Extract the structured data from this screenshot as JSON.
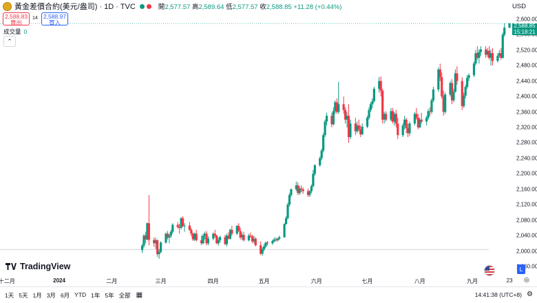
{
  "header": {
    "symbol": "黃金差價合約(美元/盎司) · 1D · TVC",
    "open_label": "開",
    "open": "2,577.57",
    "high_label": "高",
    "high": "2,589.64",
    "low_label": "低",
    "low": "2,577.57",
    "close_label": "收",
    "close": "2,588.85",
    "change": "+11.28 (+0.44%)",
    "currency": "USD"
  },
  "trade": {
    "sell_price": "2,588.83",
    "sell_label": "賣出",
    "spread": "14",
    "buy_price": "2,588.97",
    "buy_label": "買入"
  },
  "volume": {
    "label": "成交量",
    "value": "0"
  },
  "current": {
    "price": "2,588.85",
    "countdown": "15:18:21"
  },
  "bottom": {
    "ranges": [
      "1天",
      "5天",
      "1月",
      "3月",
      "6月",
      "YTD",
      "1年",
      "5年",
      "全部"
    ],
    "clock": "14:41:38 (UTC+8)"
  },
  "brand": "TradingView",
  "scale": {
    "log_label": "L"
  },
  "colors": {
    "up": "#089981",
    "down": "#f23645",
    "accent": "#2962ff"
  },
  "chart_data": {
    "type": "candlestick",
    "y_ticks": [
      "2,600.00",
      "2,560.00",
      "2,520.00",
      "2,480.00",
      "2,440.00",
      "2,400.00",
      "2,360.00",
      "2,320.00",
      "2,280.00",
      "2,240.00",
      "2,200.00",
      "2,160.00",
      "2,120.00",
      "2,080.00",
      "2,040.00",
      "2,000.00",
      "1,960.00"
    ],
    "ylim": [
      1944,
      2614
    ],
    "x_labels": [
      {
        "label": "十二月",
        "date": "2023-12-01"
      },
      {
        "label": "2024",
        "date": "2024-01-01",
        "year": true
      },
      {
        "label": "二月",
        "date": "2024-02-01"
      },
      {
        "label": "三月",
        "date": "2024-03-01"
      },
      {
        "label": "四月",
        "date": "2024-04-01"
      },
      {
        "label": "五月",
        "date": "2024-05-01"
      },
      {
        "label": "六月",
        "date": "2024-06-01"
      },
      {
        "label": "七月",
        "date": "2024-07-01"
      },
      {
        "label": "八月",
        "date": "2024-08-01"
      },
      {
        "label": "九月",
        "date": "2024-09-01"
      },
      {
        "label": "23",
        "date": "2024-09-23"
      }
    ],
    "x_range": [
      "2023-11-27",
      "2024-09-25"
    ],
    "last_bar": "2024-09-23",
    "reference_line": 2004,
    "candles": [
      [
        2003,
        2018,
        1995,
        2014
      ],
      [
        2014,
        2044,
        2009,
        2040
      ],
      [
        2040,
        2050,
        2020,
        2030
      ],
      [
        2030,
        2074,
        2028,
        2072
      ],
      [
        2072,
        2145,
        2015,
        2029
      ],
      [
        2029,
        2035,
        2011,
        2020
      ],
      [
        2020,
        2035,
        2005,
        2028
      ],
      [
        2028,
        2030,
        1985,
        1992
      ],
      [
        1992,
        2005,
        1980,
        1998
      ],
      [
        1998,
        2025,
        1995,
        2022
      ],
      [
        2022,
        2048,
        2019,
        2045
      ],
      [
        2045,
        2052,
        2030,
        2035
      ],
      [
        2035,
        2045,
        2020,
        2040
      ],
      [
        2040,
        2055,
        2034,
        2050
      ],
      [
        2050,
        2072,
        2045,
        2068
      ],
      [
        2068,
        2075,
        2058,
        2062
      ],
      [
        2062,
        2070,
        2045,
        2060
      ],
      [
        2060,
        2088,
        2056,
        2085
      ],
      [
        2085,
        2090,
        2062,
        2065
      ],
      [
        2065,
        2072,
        2050,
        2066
      ],
      [
        2066,
        2075,
        2052,
        2055
      ],
      [
        2055,
        2060,
        2038,
        2045
      ],
      [
        2045,
        2048,
        2026,
        2030
      ],
      [
        2030,
        2048,
        2026,
        2045
      ],
      [
        2045,
        2055,
        2025,
        2028
      ],
      [
        2028,
        2040,
        2015,
        2020
      ],
      [
        2020,
        2045,
        2018,
        2040
      ],
      [
        2040,
        2050,
        2030,
        2045
      ],
      [
        2045,
        2052,
        2015,
        2020
      ],
      [
        2020,
        2038,
        2015,
        2032
      ],
      [
        2032,
        2048,
        2028,
        2045
      ],
      [
        2045,
        2055,
        2035,
        2040
      ],
      [
        2040,
        2042,
        2018,
        2020
      ],
      [
        2020,
        2035,
        2014,
        2028
      ],
      [
        2028,
        2040,
        2022,
        2036
      ],
      [
        2036,
        2042,
        2015,
        2018
      ],
      [
        2018,
        2045,
        2012,
        2040
      ],
      [
        2040,
        2048,
        2030,
        2032
      ],
      [
        2032,
        2058,
        2030,
        2055
      ],
      [
        2055,
        2065,
        2040,
        2045
      ],
      [
        2045,
        2068,
        2042,
        2065
      ],
      [
        2065,
        2072,
        2050,
        2052
      ],
      [
        2052,
        2060,
        2030,
        2035
      ],
      [
        2035,
        2048,
        2028,
        2042
      ],
      [
        2042,
        2050,
        2025,
        2028
      ],
      [
        2028,
        2045,
        2025,
        2040
      ],
      [
        2040,
        2048,
        2035,
        2038
      ],
      [
        2038,
        2042,
        2020,
        2025
      ],
      [
        2025,
        2040,
        2020,
        2032
      ],
      [
        2032,
        2036,
        2012,
        2015
      ],
      [
        2015,
        2025,
        1990,
        1993
      ],
      [
        1993,
        2010,
        1988,
        2005
      ],
      [
        2005,
        2018,
        2000,
        2012
      ],
      [
        2012,
        2024,
        2008,
        2022
      ],
      [
        2022,
        2026,
        2015,
        2020
      ],
      [
        2020,
        2030,
        2016,
        2026
      ],
      [
        2026,
        2035,
        2022,
        2030
      ],
      [
        2030,
        2036,
        2024,
        2028
      ],
      [
        2028,
        2034,
        2024,
        2032
      ],
      [
        2032,
        2040,
        2028,
        2036
      ],
      [
        2036,
        2072,
        2034,
        2070
      ],
      [
        2070,
        2090,
        2068,
        2085
      ],
      [
        2085,
        2125,
        2082,
        2120
      ],
      [
        2120,
        2150,
        2115,
        2145
      ],
      [
        2145,
        2162,
        2140,
        2160
      ],
      [
        2160,
        2180,
        2155,
        2170
      ],
      [
        2170,
        2178,
        2145,
        2150
      ],
      [
        2150,
        2168,
        2145,
        2162
      ],
      [
        2162,
        2170,
        2152,
        2160
      ],
      [
        2160,
        2165,
        2148,
        2155
      ],
      [
        2155,
        2162,
        2140,
        2145
      ],
      [
        2145,
        2158,
        2140,
        2155
      ],
      [
        2155,
        2172,
        2150,
        2168
      ],
      [
        2168,
        2210,
        2165,
        2200
      ],
      [
        2200,
        2225,
        2195,
        2222
      ],
      [
        2222,
        2245,
        2218,
        2240
      ],
      [
        2240,
        2265,
        2235,
        2260
      ],
      [
        2260,
        2305,
        2255,
        2300
      ],
      [
        2300,
        2340,
        2295,
        2335
      ],
      [
        2335,
        2358,
        2325,
        2350
      ],
      [
        2350,
        2358,
        2320,
        2328
      ],
      [
        2328,
        2372,
        2325,
        2362
      ],
      [
        2362,
        2390,
        2355,
        2385
      ],
      [
        2385,
        2395,
        2355,
        2360
      ],
      [
        2360,
        2438,
        2355,
        2380
      ],
      [
        2380,
        2400,
        2355,
        2365
      ],
      [
        2365,
        2372,
        2330,
        2340
      ],
      [
        2340,
        2360,
        2320,
        2350
      ],
      [
        2350,
        2380,
        2280,
        2295
      ],
      [
        2295,
        2340,
        2290,
        2330
      ],
      [
        2330,
        2345,
        2300,
        2310
      ],
      [
        2310,
        2335,
        2305,
        2325
      ],
      [
        2325,
        2340,
        2310,
        2315
      ],
      [
        2315,
        2325,
        2295,
        2302
      ],
      [
        2302,
        2330,
        2300,
        2322
      ],
      [
        2322,
        2350,
        2318,
        2345
      ],
      [
        2345,
        2372,
        2340,
        2365
      ],
      [
        2365,
        2385,
        2360,
        2380
      ],
      [
        2380,
        2395,
        2370,
        2388
      ],
      [
        2388,
        2425,
        2385,
        2420
      ],
      [
        2420,
        2450,
        2410,
        2440
      ],
      [
        2440,
        2452,
        2400,
        2415
      ],
      [
        2415,
        2420,
        2330,
        2340
      ],
      [
        2340,
        2360,
        2330,
        2355
      ],
      [
        2355,
        2362,
        2335,
        2340
      ],
      [
        2340,
        2370,
        2336,
        2362
      ],
      [
        2362,
        2370,
        2330,
        2335
      ],
      [
        2335,
        2360,
        2325,
        2355
      ],
      [
        2355,
        2365,
        2320,
        2330
      ],
      [
        2330,
        2345,
        2290,
        2300
      ],
      [
        2300,
        2330,
        2295,
        2325
      ],
      [
        2325,
        2350,
        2315,
        2340
      ],
      [
        2340,
        2345,
        2305,
        2318
      ],
      [
        2318,
        2330,
        2295,
        2305
      ],
      [
        2305,
        2335,
        2298,
        2330
      ],
      [
        2330,
        2360,
        2325,
        2355
      ],
      [
        2355,
        2370,
        2340,
        2345
      ],
      [
        2345,
        2355,
        2315,
        2320
      ],
      [
        2320,
        2345,
        2318,
        2340
      ],
      [
        2340,
        2358,
        2330,
        2335
      ],
      [
        2335,
        2350,
        2325,
        2345
      ],
      [
        2345,
        2368,
        2340,
        2362
      ],
      [
        2362,
        2372,
        2350,
        2360
      ],
      [
        2360,
        2395,
        2355,
        2390
      ],
      [
        2390,
        2425,
        2385,
        2418
      ],
      [
        2418,
        2475,
        2412,
        2470
      ],
      [
        2470,
        2485,
        2440,
        2450
      ],
      [
        2450,
        2462,
        2395,
        2400
      ],
      [
        2400,
        2415,
        2350,
        2360
      ],
      [
        2360,
        2410,
        2355,
        2405
      ],
      [
        2405,
        2440,
        2400,
        2435
      ],
      [
        2435,
        2445,
        2380,
        2390
      ],
      [
        2390,
        2420,
        2385,
        2412
      ],
      [
        2412,
        2470,
        2410,
        2460
      ],
      [
        2460,
        2478,
        2430,
        2440
      ],
      [
        2440,
        2450,
        2365,
        2375
      ],
      [
        2375,
        2410,
        2370,
        2402
      ],
      [
        2402,
        2430,
        2395,
        2425
      ],
      [
        2425,
        2455,
        2420,
        2448
      ],
      [
        2448,
        2460,
        2440,
        2455
      ],
      [
        2455,
        2490,
        2450,
        2485
      ],
      [
        2485,
        2520,
        2480,
        2512
      ],
      [
        2512,
        2530,
        2495,
        2500
      ],
      [
        2500,
        2522,
        2485,
        2515
      ],
      [
        2515,
        2530,
        2505,
        2522
      ],
      [
        2522,
        2530,
        2500,
        2508
      ],
      [
        2508,
        2525,
        2502,
        2518
      ],
      [
        2518,
        2530,
        2495,
        2500
      ],
      [
        2500,
        2522,
        2480,
        2512
      ],
      [
        2512,
        2525,
        2480,
        2492
      ],
      [
        2492,
        2512,
        2488,
        2505
      ],
      [
        2505,
        2520,
        2500,
        2512
      ],
      [
        2512,
        2525,
        2495,
        2500
      ],
      [
        2500,
        2565,
        2498,
        2560
      ],
      [
        2560,
        2590,
        2555,
        2578
      ],
      [
        2578,
        2590,
        2577,
        2589
      ]
    ]
  }
}
